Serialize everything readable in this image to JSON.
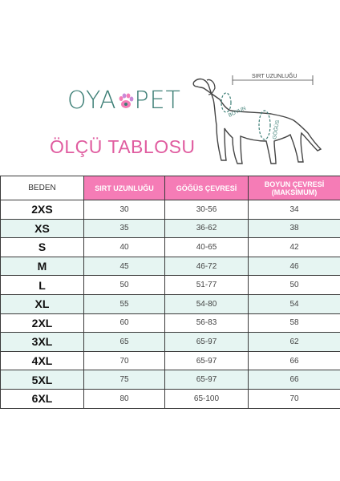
{
  "brand": {
    "logo_left": "OYA",
    "logo_right": "PET",
    "paw_icon": "paw-icon"
  },
  "title": "ÖLÇÜ TABLOSU",
  "diagram": {
    "label_back": "SIRT UZUNLUĞU",
    "label_neck": "BOYUN",
    "label_chest": "GÖĞÜS"
  },
  "colors": {
    "header_pink": "#f57cb6",
    "row_mint": "#e6f5f2",
    "logo_teal": "#3d7f76",
    "title_pink": "#e05da0"
  },
  "table": {
    "headers": [
      "BEDEN",
      "SIRT UZUNLUĞU",
      "GÖĞÜS ÇEVRESİ",
      "BOYUN ÇEVRESİ\n(MAKSİMUM)"
    ],
    "header3_line1": "BOYUN ÇEVRESİ",
    "header3_line2": "(MAKSİMUM)",
    "rows": [
      {
        "size": "2XS",
        "back": "30",
        "chest": "30-56",
        "neck": "34"
      },
      {
        "size": "XS",
        "back": "35",
        "chest": "36-62",
        "neck": "38"
      },
      {
        "size": "S",
        "back": "40",
        "chest": "40-65",
        "neck": "42"
      },
      {
        "size": "M",
        "back": "45",
        "chest": "46-72",
        "neck": "46"
      },
      {
        "size": "L",
        "back": "50",
        "chest": "51-77",
        "neck": "50"
      },
      {
        "size": "XL",
        "back": "55",
        "chest": "54-80",
        "neck": "54"
      },
      {
        "size": "2XL",
        "back": "60",
        "chest": "56-83",
        "neck": "58"
      },
      {
        "size": "3XL",
        "back": "65",
        "chest": "65-97",
        "neck": "62"
      },
      {
        "size": "4XL",
        "back": "70",
        "chest": "65-97",
        "neck": "66"
      },
      {
        "size": "5XL",
        "back": "75",
        "chest": "65-97",
        "neck": "66"
      },
      {
        "size": "6XL",
        "back": "80",
        "chest": "65-100",
        "neck": "70"
      }
    ]
  }
}
